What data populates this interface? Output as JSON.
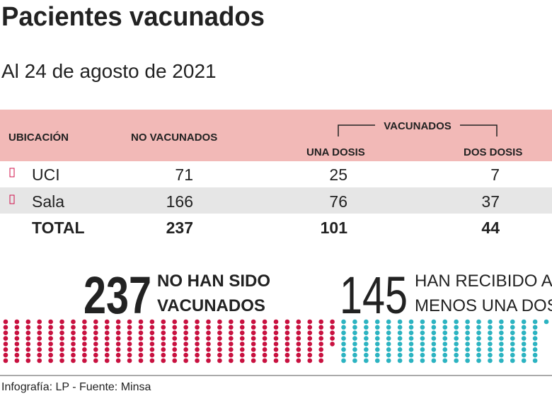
{
  "title": "Pacientes vacunados",
  "subtitle": "Al 24 de agosto de 2021",
  "table": {
    "headers": {
      "location": "UBICACIÓN",
      "unvaccinated": "NO VACUNADOS",
      "vaccinated": "VACUNADOS",
      "one_dose": "UNA DOSIS",
      "two_doses": "DOS DOSIS"
    },
    "rows": [
      [
        "UCI",
        71,
        25,
        7
      ],
      [
        "Sala",
        166,
        76,
        37
      ],
      [
        "TOTAL",
        237,
        101,
        44
      ]
    ]
  },
  "summary": [
    {
      "value": 237,
      "label_lines": [
        "NO HAN SIDO",
        "VACUNADOS"
      ],
      "color": "#c8103f"
    },
    {
      "value": 145,
      "label_lines": [
        "HAN RECIBIDO AL",
        "MENOS UNA DOSIS"
      ],
      "color": "#2bb3c1"
    }
  ],
  "source": "Infografía: LP - Fuente: Minsa"
}
